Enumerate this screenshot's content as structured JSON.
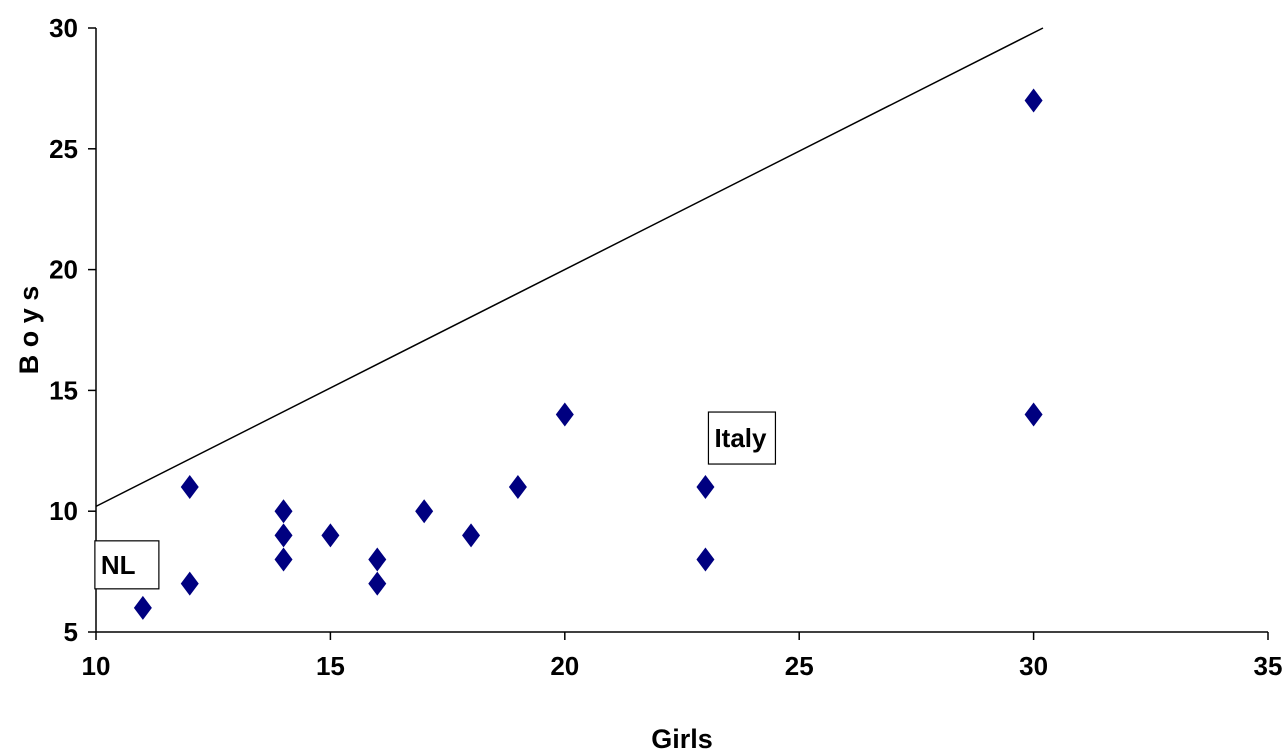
{
  "chart_data": {
    "type": "scatter",
    "title": "",
    "xlabel": "Girls",
    "ylabel": "B o y s",
    "xlim": [
      10,
      35
    ],
    "ylim": [
      5,
      30
    ],
    "xticks": [
      10,
      15,
      20,
      25,
      30,
      35
    ],
    "yticks": [
      5,
      10,
      15,
      20,
      25,
      30
    ],
    "grid": false,
    "marker": "diamond",
    "marker_color": "#000080",
    "series": [
      {
        "points": [
          {
            "x": 11,
            "y": 6
          },
          {
            "x": 12,
            "y": 11
          },
          {
            "x": 12,
            "y": 7
          },
          {
            "x": 14,
            "y": 10
          },
          {
            "x": 14,
            "y": 9
          },
          {
            "x": 14,
            "y": 8
          },
          {
            "x": 15,
            "y": 9
          },
          {
            "x": 16,
            "y": 8
          },
          {
            "x": 16,
            "y": 7
          },
          {
            "x": 17,
            "y": 10
          },
          {
            "x": 18,
            "y": 9
          },
          {
            "x": 19,
            "y": 11
          },
          {
            "x": 20,
            "y": 14
          },
          {
            "x": 23,
            "y": 11
          },
          {
            "x": 23,
            "y": 8
          },
          {
            "x": 30,
            "y": 27
          },
          {
            "x": 30,
            "y": 14
          }
        ]
      }
    ],
    "reference_line": {
      "from": [
        10,
        10.2
      ],
      "to": [
        30.2,
        30
      ]
    },
    "annotations": [
      {
        "text": "NL",
        "x": 11,
        "y": 6
      },
      {
        "text": "Italy",
        "x": 23,
        "y": 11
      }
    ]
  }
}
